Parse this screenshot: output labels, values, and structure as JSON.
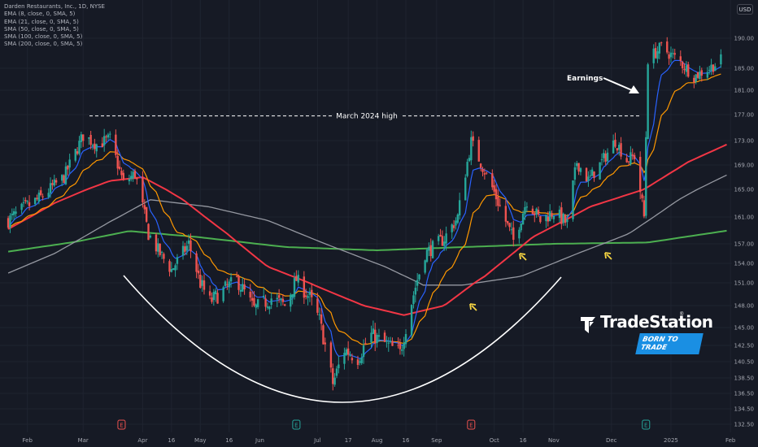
{
  "legend": {
    "symbol": "Darden Restaurants, Inc., 1D, NYSE",
    "indicators": [
      "EMA (8, close, 0, SMA, 5)",
      "EMA (21, close, 0, SMA, 5)",
      "SMA (50, close, 0, SMA, 5)",
      "SMA (100, close, 0, SMA, 5)",
      "SMA (200, close, 0, SMA, 5)"
    ]
  },
  "currency": "USD",
  "branding": {
    "name": "TradeStation",
    "registered": "®",
    "tagline": "BORN TO TRADE"
  },
  "colors": {
    "background": "#161a25",
    "grid": "#1f2430",
    "up": "#26a69a",
    "down": "#ef5350",
    "ema8": "#2962ff",
    "ema21": "#ff9800",
    "sma50": "#f23645",
    "sma100": "#9598a1",
    "sma200": "#4caf50"
  },
  "chart_data": {
    "type": "candlestick",
    "xlabels": [
      "Feb",
      "Mar",
      "Apr",
      "16",
      "May",
      "16",
      "Jun",
      "Jul",
      "17",
      "Aug",
      "16",
      "Sep",
      "Oct",
      "16",
      "Nov",
      "Dec",
      "2025",
      "Feb"
    ],
    "yticks": [
      "190.00",
      "185.00",
      "181.00",
      "177.00",
      "173.00",
      "169.00",
      "165.00",
      "161.00",
      "157.00",
      "154.00",
      "151.00",
      "148.00",
      "145.00",
      "142.50",
      "140.50",
      "138.50",
      "136.50",
      "134.50",
      "132.50"
    ],
    "annotations": [
      {
        "text": "March 2024 high",
        "type": "resistance-line",
        "value": 176.8
      },
      {
        "text": "Earnings",
        "type": "arrow"
      }
    ],
    "earnings_markers": [
      {
        "label": "E",
        "direction": "down",
        "date": "2024-03-21"
      },
      {
        "label": "E",
        "direction": "up",
        "date": "2024-06-20"
      },
      {
        "label": "E",
        "direction": "down",
        "date": "2024-09-19"
      },
      {
        "label": "E",
        "direction": "up",
        "date": "2024-12-19"
      }
    ],
    "price_anchors": [
      [
        "2024-01-22",
        160.5
      ],
      [
        "2024-01-30",
        162.2
      ],
      [
        "2024-02-08",
        163.8
      ],
      [
        "2024-02-20",
        167.0
      ],
      [
        "2024-03-01",
        173.8
      ],
      [
        "2024-03-08",
        172.4
      ],
      [
        "2024-03-15",
        173.2
      ],
      [
        "2024-03-22",
        166.0
      ],
      [
        "2024-03-28",
        167.6
      ],
      [
        "2024-04-04",
        158.5
      ],
      [
        "2024-04-10",
        155.5
      ],
      [
        "2024-04-16",
        153.0
      ],
      [
        "2024-04-25",
        157.0
      ],
      [
        "2024-05-01",
        151.0
      ],
      [
        "2024-05-06",
        148.5
      ],
      [
        "2024-05-13",
        150.0
      ],
      [
        "2024-05-20",
        151.5
      ],
      [
        "2024-05-29",
        147.5
      ],
      [
        "2024-06-07",
        149.0
      ],
      [
        "2024-06-14",
        148.0
      ],
      [
        "2024-06-20",
        151.5
      ],
      [
        "2024-06-27",
        149.0
      ],
      [
        "2024-07-02",
        146.0
      ],
      [
        "2024-07-09",
        137.8
      ],
      [
        "2024-07-15",
        142.0
      ],
      [
        "2024-07-22",
        141.0
      ],
      [
        "2024-07-29",
        144.0
      ],
      [
        "2024-08-05",
        142.8
      ],
      [
        "2024-08-13",
        141.5
      ],
      [
        "2024-08-19",
        148.5
      ],
      [
        "2024-08-26",
        155.5
      ],
      [
        "2024-09-05",
        157.8
      ],
      [
        "2024-09-12",
        161.0
      ],
      [
        "2024-09-19",
        172.8
      ],
      [
        "2024-09-26",
        168.0
      ],
      [
        "2024-10-04",
        162.5
      ],
      [
        "2024-10-11",
        157.5
      ],
      [
        "2024-10-18",
        163.5
      ],
      [
        "2024-10-25",
        160.5
      ],
      [
        "2024-11-01",
        161.8
      ],
      [
        "2024-11-08",
        160.0
      ],
      [
        "2024-11-13",
        169.5
      ],
      [
        "2024-11-19",
        166.5
      ],
      [
        "2024-11-26",
        169.5
      ],
      [
        "2024-12-03",
        173.0
      ],
      [
        "2024-12-09",
        169.8
      ],
      [
        "2024-12-13",
        170.5
      ],
      [
        "2024-12-18",
        161.0
      ],
      [
        "2024-12-20",
        186.5
      ],
      [
        "2024-12-27",
        188.5
      ],
      [
        "2025-01-06",
        186.0
      ],
      [
        "2025-01-13",
        183.5
      ],
      [
        "2025-01-21",
        185.0
      ],
      [
        "2025-01-27",
        186.3
      ]
    ],
    "ma_anchors": {
      "sma50": [
        [
          "2024-01-22",
          159.2
        ],
        [
          "2024-02-15",
          163.0
        ],
        [
          "2024-03-15",
          166.4
        ],
        [
          "2024-04-01",
          167.0
        ],
        [
          "2024-04-22",
          163.5
        ],
        [
          "2024-05-15",
          158.5
        ],
        [
          "2024-06-05",
          153.5
        ],
        [
          "2024-07-01",
          150.5
        ],
        [
          "2024-07-25",
          148.0
        ],
        [
          "2024-08-15",
          146.7
        ],
        [
          "2024-09-05",
          148.0
        ],
        [
          "2024-09-26",
          152.0
        ],
        [
          "2024-10-21",
          158.0
        ],
        [
          "2024-11-20",
          162.5
        ],
        [
          "2024-12-18",
          165.0
        ],
        [
          "2025-01-10",
          169.5
        ],
        [
          "2025-01-31",
          172.5
        ]
      ],
      "sma100": [
        [
          "2024-01-22",
          152.5
        ],
        [
          "2024-02-15",
          155.5
        ],
        [
          "2024-03-15",
          160.3
        ],
        [
          "2024-04-05",
          163.5
        ],
        [
          "2024-05-05",
          162.5
        ],
        [
          "2024-06-05",
          160.5
        ],
        [
          "2024-07-05",
          157.0
        ],
        [
          "2024-08-05",
          153.5
        ],
        [
          "2024-08-25",
          150.7
        ],
        [
          "2024-09-15",
          150.7
        ],
        [
          "2024-10-15",
          152.0
        ],
        [
          "2024-11-15",
          155.7
        ],
        [
          "2024-12-10",
          158.5
        ],
        [
          "2025-01-05",
          163.5
        ],
        [
          "2025-01-31",
          167.5
        ]
      ],
      "sma200": [
        [
          "2024-01-22",
          155.8
        ],
        [
          "2024-02-26",
          157.3
        ],
        [
          "2024-03-25",
          158.9
        ],
        [
          "2024-04-30",
          158.0
        ],
        [
          "2024-06-15",
          156.5
        ],
        [
          "2024-08-01",
          156.0
        ],
        [
          "2024-09-15",
          156.5
        ],
        [
          "2024-11-01",
          157.0
        ],
        [
          "2024-12-20",
          157.2
        ],
        [
          "2025-01-31",
          159.0
        ]
      ]
    }
  }
}
